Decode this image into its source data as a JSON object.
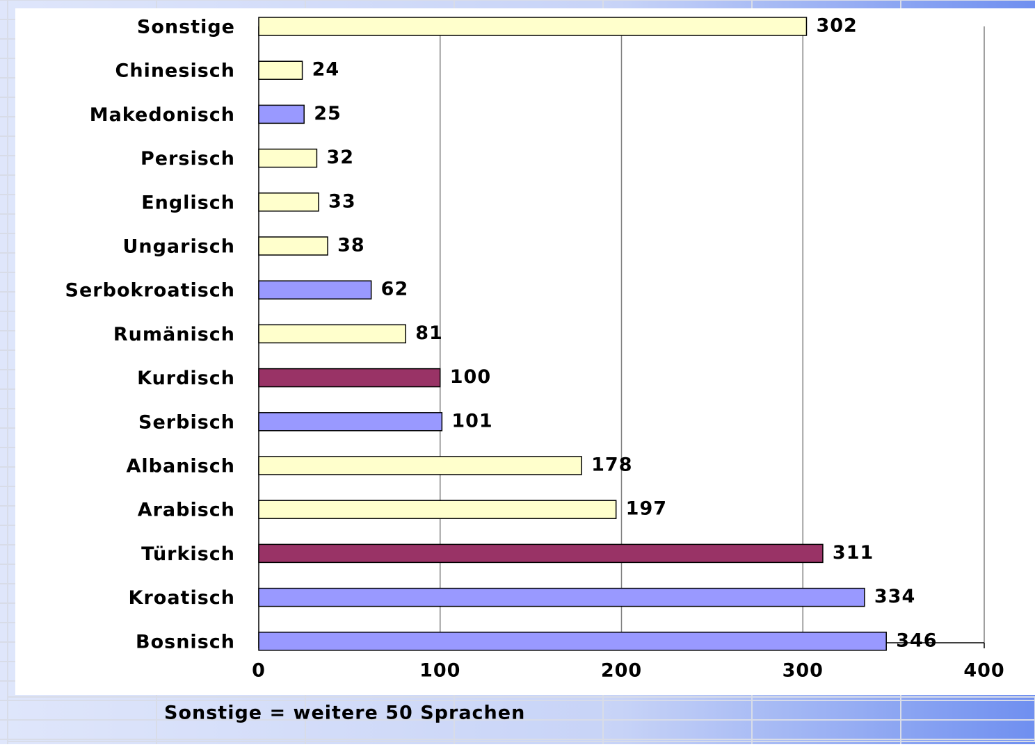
{
  "chart_data": {
    "type": "bar",
    "orientation": "horizontal",
    "categories": [
      "Sonstige",
      "Chinesisch",
      "Makedonisch",
      "Persisch",
      "Englisch",
      "Ungarisch",
      "Serbokroatisch",
      "Rumänisch",
      "Kurdisch",
      "Serbisch",
      "Albanisch",
      "Arabisch",
      "Türkisch",
      "Kroatisch",
      "Bosnisch"
    ],
    "values": [
      302,
      24,
      25,
      32,
      33,
      38,
      62,
      81,
      100,
      101,
      178,
      197,
      311,
      334,
      346
    ],
    "colors": [
      "#ffffcc",
      "#ffffcc",
      "#9999ff",
      "#ffffcc",
      "#ffffcc",
      "#ffffcc",
      "#9999ff",
      "#ffffcc",
      "#993366",
      "#9999ff",
      "#ffffcc",
      "#ffffcc",
      "#993366",
      "#9999ff",
      "#9999ff"
    ],
    "xlim": [
      0,
      400
    ],
    "xticks": [
      0,
      100,
      200,
      300,
      400
    ],
    "grid": true,
    "note": "Sonstige = weitere 50 Sprachen"
  }
}
